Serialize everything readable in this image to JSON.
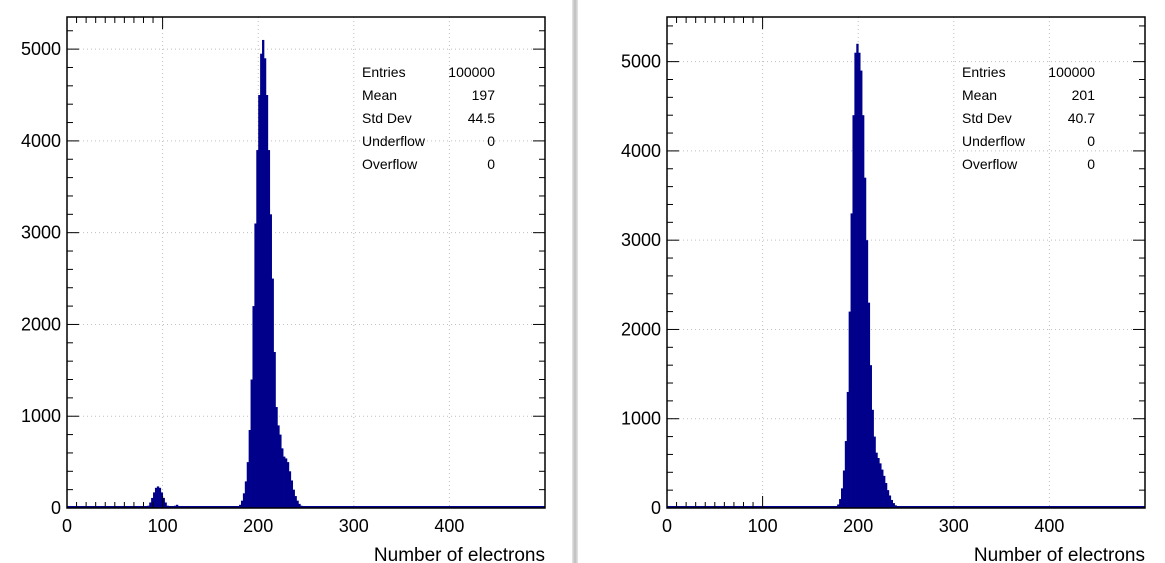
{
  "colors": {
    "fill": "#00008b",
    "grid": "#bfbfbf",
    "axis": "#000000",
    "background": "#ffffff"
  },
  "chart_data": [
    {
      "type": "bar",
      "title": "",
      "xlabel": "Number of electrons",
      "ylabel": "",
      "xlim": [
        0,
        500
      ],
      "ylim": [
        0,
        5350
      ],
      "grid": true,
      "x_ticks": [
        0,
        100,
        200,
        300,
        400
      ],
      "y_ticks": [
        0,
        1000,
        2000,
        3000,
        4000,
        5000
      ],
      "stats_box": {
        "placement": "top-right",
        "rows": [
          {
            "label": "Entries",
            "value": "100000"
          },
          {
            "label": "Mean",
            "value": "197"
          },
          {
            "label": "Std Dev",
            "value": "44.5"
          },
          {
            "label": "Underflow",
            "value": "0"
          },
          {
            "label": "Overflow",
            "value": "0"
          }
        ]
      },
      "bin_width": 2,
      "x": [
        80,
        82,
        84,
        86,
        88,
        90,
        92,
        94,
        96,
        98,
        100,
        102,
        104,
        106,
        108,
        110,
        112,
        114,
        116,
        118,
        120,
        122,
        124,
        176,
        178,
        180,
        182,
        184,
        186,
        188,
        190,
        192,
        194,
        196,
        198,
        200,
        202,
        204,
        206,
        208,
        210,
        212,
        214,
        216,
        218,
        220,
        222,
        224,
        226,
        228,
        230,
        232,
        234,
        236,
        238,
        240,
        242,
        244,
        246,
        248
      ],
      "values": [
        5,
        10,
        25,
        60,
        110,
        170,
        220,
        235,
        220,
        170,
        110,
        60,
        25,
        12,
        8,
        15,
        25,
        35,
        22,
        10,
        5,
        3,
        2,
        5,
        15,
        35,
        80,
        160,
        290,
        500,
        850,
        1400,
        2200,
        3100,
        3900,
        4500,
        4950,
        5100,
        4900,
        4500,
        3900,
        3200,
        2500,
        1700,
        1100,
        900,
        800,
        650,
        560,
        540,
        500,
        400,
        300,
        200,
        130,
        80,
        45,
        25,
        12,
        5
      ]
    },
    {
      "type": "bar",
      "title": "",
      "xlabel": "Number of electrons",
      "ylabel": "",
      "xlim": [
        0,
        500
      ],
      "ylim": [
        0,
        5500
      ],
      "grid": true,
      "x_ticks": [
        0,
        100,
        200,
        300,
        400
      ],
      "y_ticks": [
        0,
        1000,
        2000,
        3000,
        4000,
        5000
      ],
      "stats_box": {
        "placement": "top-right",
        "rows": [
          {
            "label": "Entries",
            "value": "100000"
          },
          {
            "label": "Mean",
            "value": "201"
          },
          {
            "label": "Std Dev",
            "value": "40.7"
          },
          {
            "label": "Underflow",
            "value": "0"
          },
          {
            "label": "Overflow",
            "value": "0"
          }
        ]
      },
      "bin_width": 2,
      "x": [
        174,
        176,
        178,
        180,
        182,
        184,
        186,
        188,
        190,
        192,
        194,
        196,
        198,
        200,
        202,
        204,
        206,
        208,
        210,
        212,
        214,
        216,
        218,
        220,
        222,
        224,
        226,
        228,
        230,
        232,
        234,
        236,
        238,
        240,
        242,
        244
      ],
      "values": [
        5,
        15,
        40,
        100,
        220,
        420,
        750,
        1300,
        2200,
        3300,
        4400,
        5100,
        5200,
        5100,
        4900,
        4400,
        3700,
        3000,
        2300,
        1600,
        1100,
        800,
        620,
        560,
        500,
        430,
        360,
        280,
        200,
        140,
        90,
        55,
        30,
        15,
        8,
        3
      ]
    }
  ]
}
